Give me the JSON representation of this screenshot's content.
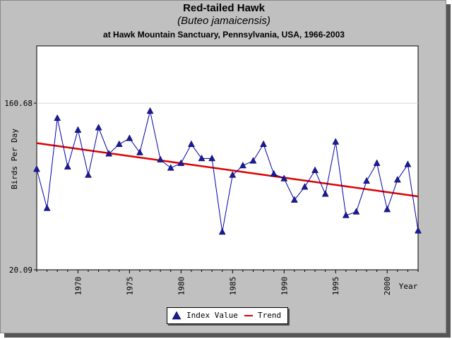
{
  "colors": {
    "series": "#0000aa",
    "marker": "#1a1aa0",
    "trend": "#dd0000",
    "background": "#c0c0c0",
    "plot": "#ffffff"
  },
  "legend": {
    "index_label": "Index Value",
    "trend_label": "Trend",
    "index_icon": "triangle-marker-icon",
    "trend_icon": "red-line-icon"
  },
  "chart_data": {
    "type": "line",
    "title": "Red-tailed Hawk",
    "subtitle": "(Buteo jamaicensis)",
    "caption": "at Hawk Mountain Sanctuary, Pennsylvania, USA, 1966-2003",
    "xlabel": "Year",
    "ylabel": "Birds Per Day",
    "xlim": [
      1966,
      2003
    ],
    "ylim": [
      20.09,
      209.0
    ],
    "x_ticks": [
      1970,
      1975,
      1980,
      1985,
      1990,
      1995,
      2000
    ],
    "y_ticks": [
      20.09,
      160.68
    ],
    "y_tick_labels": [
      "20.09",
      "160.68"
    ],
    "grid": "horizontal",
    "legend_position": "bottom-center",
    "series": [
      {
        "name": "Index Value",
        "style": "line-with-triangle-markers",
        "x": [
          1966,
          1967,
          1968,
          1969,
          1970,
          1971,
          1972,
          1973,
          1974,
          1975,
          1976,
          1977,
          1978,
          1979,
          1980,
          1981,
          1982,
          1983,
          1984,
          1985,
          1986,
          1987,
          1988,
          1989,
          1990,
          1991,
          1992,
          1993,
          1994,
          1995,
          1996,
          1997,
          1998,
          1999,
          2000,
          2001,
          2002,
          2003
        ],
        "values": [
          105,
          72,
          148,
          107,
          138,
          100,
          140,
          118,
          126,
          131,
          119,
          154,
          113,
          106,
          110,
          126,
          114,
          114,
          52,
          100,
          108,
          112,
          126,
          101,
          97,
          79,
          90,
          104,
          84,
          128,
          66,
          69,
          95,
          110,
          71,
          96,
          109,
          53
        ]
      },
      {
        "name": "Trend",
        "style": "line",
        "x": [
          1966,
          2003
        ],
        "values": [
          127,
          82
        ]
      }
    ]
  }
}
